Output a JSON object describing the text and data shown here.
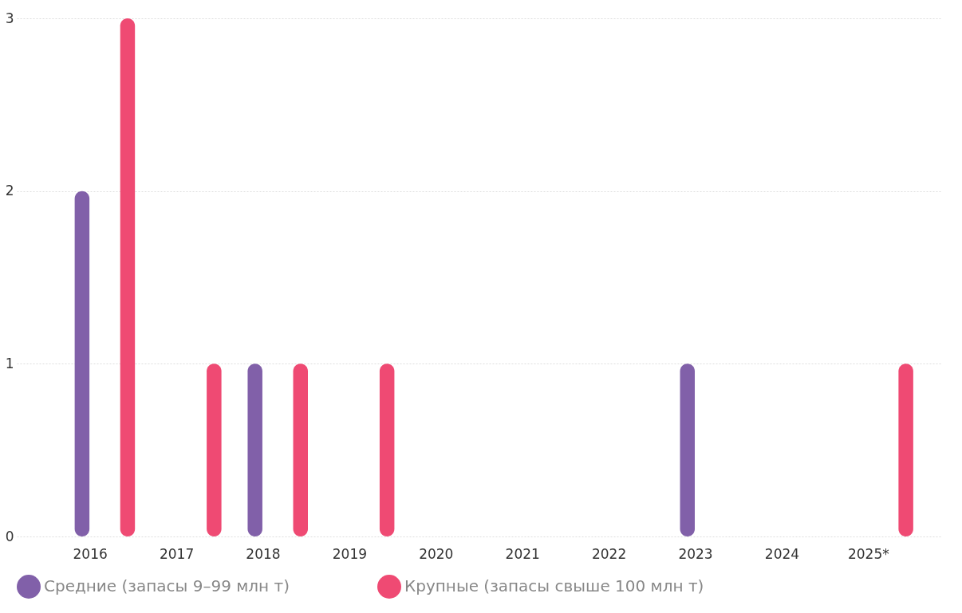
{
  "chart_data": {
    "type": "bar",
    "categories": [
      "2016",
      "2017",
      "2018",
      "2019",
      "2020",
      "2021",
      "2022",
      "2023",
      "2024",
      "2025*"
    ],
    "series": [
      {
        "name": "Средние (запасы 9–99 млн т)",
        "color": "#8160a9",
        "values": [
          2,
          0,
          1,
          0,
          0,
          0,
          0,
          1,
          0,
          0
        ]
      },
      {
        "name": "Крупные (запасы свыше 100 млн т)",
        "color": "#ef4a73",
        "values": [
          3,
          1,
          1,
          1,
          0,
          0,
          0,
          0,
          0,
          1
        ]
      }
    ],
    "ylim": [
      0,
      3
    ],
    "yticks": [
      0,
      1,
      2,
      3
    ],
    "grid": "y",
    "legend": "bottom left"
  }
}
